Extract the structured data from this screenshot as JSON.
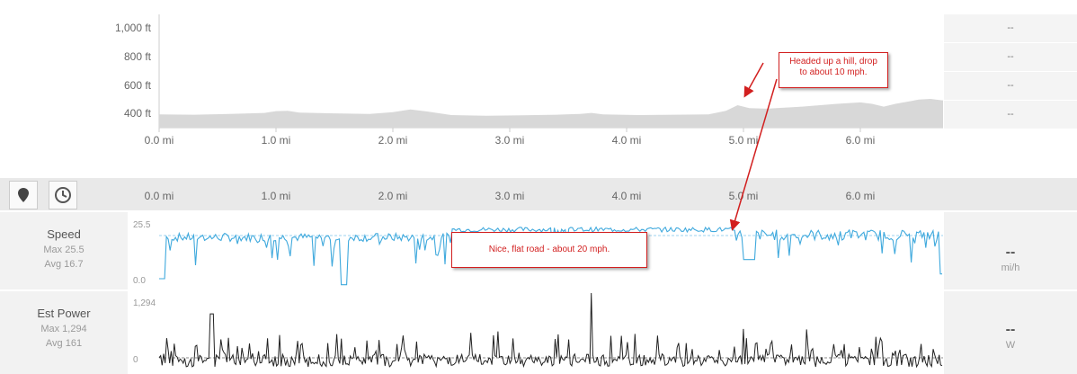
{
  "elevation": {
    "y_ticks": [
      "1,000 ft",
      "800 ft",
      "600 ft",
      "400 ft"
    ],
    "right_values": [
      "--",
      "--",
      "--",
      "--"
    ],
    "profile": [
      [
        0,
        375
      ],
      [
        0.3,
        372
      ],
      [
        0.6,
        378
      ],
      [
        0.9,
        385
      ],
      [
        1.0,
        398
      ],
      [
        1.1,
        400
      ],
      [
        1.2,
        388
      ],
      [
        1.5,
        382
      ],
      [
        1.8,
        378
      ],
      [
        2.0,
        390
      ],
      [
        2.15,
        410
      ],
      [
        2.3,
        395
      ],
      [
        2.5,
        370
      ],
      [
        2.8,
        365
      ],
      [
        3.1,
        368
      ],
      [
        3.4,
        372
      ],
      [
        3.6,
        378
      ],
      [
        3.7,
        385
      ],
      [
        3.8,
        375
      ],
      [
        4.1,
        370
      ],
      [
        4.4,
        372
      ],
      [
        4.7,
        375
      ],
      [
        4.85,
        400
      ],
      [
        4.95,
        440
      ],
      [
        5.05,
        420
      ],
      [
        5.2,
        415
      ],
      [
        5.5,
        430
      ],
      [
        5.8,
        450
      ],
      [
        6.0,
        460
      ],
      [
        6.1,
        450
      ],
      [
        6.2,
        430
      ],
      [
        6.3,
        450
      ],
      [
        6.5,
        480
      ],
      [
        6.6,
        485
      ],
      [
        6.7,
        475
      ]
    ]
  },
  "x_axis": {
    "ticks": [
      "0.0 mi",
      "1.0 mi",
      "2.0 mi",
      "3.0 mi",
      "4.0 mi",
      "5.0 mi",
      "6.0 mi"
    ],
    "max_mi": 6.7
  },
  "toolbar": {
    "distance_icon": "map-pin-icon",
    "time_icon": "clock-icon"
  },
  "speed": {
    "title": "Speed",
    "max_label": "Max 25.5",
    "avg_label": "Avg 16.7",
    "y_max_label": "25.5",
    "y_min_label": "0.0",
    "current": "--",
    "unit": "mi/h",
    "max": 25.5,
    "avg": 16.7,
    "color": "#3fa9dd"
  },
  "power": {
    "title": "Est Power",
    "max_label": "Max 1,294",
    "avg_label": "Avg 161",
    "y_max_label": "1,294",
    "y_min_label": "0",
    "current": "--",
    "unit": "W",
    "max": 1294,
    "avg": 161,
    "color": "#222222"
  },
  "annotations": {
    "hill": "Headed up a hill, drop to about 10 mph.",
    "flat": "Nice, flat road - about 20 mph."
  }
}
